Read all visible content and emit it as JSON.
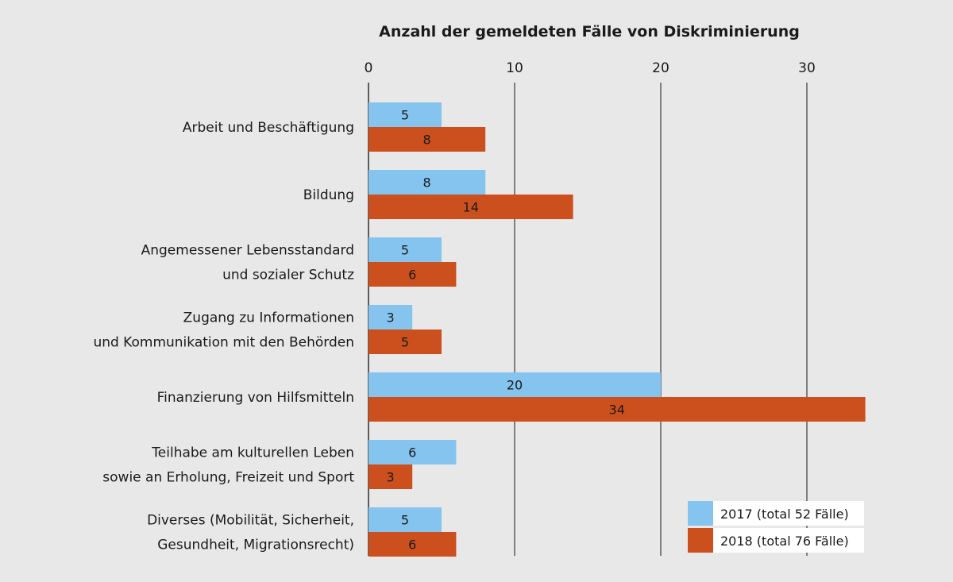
{
  "colors": {
    "background": "#e9e8e8",
    "series_2017": "#85c4ef",
    "series_2018": "#cc4f1e",
    "gridline": "#3a3a3a",
    "legend_box": "#ffffff"
  },
  "chart_data": {
    "type": "bar",
    "orientation": "horizontal",
    "title": "Anzahl der gemeldeten Fälle von Diskriminierung",
    "xlim": [
      0,
      34
    ],
    "xticks": [
      0,
      10,
      20,
      30
    ],
    "grid": true,
    "legend_position": "bottom-right",
    "categories": [
      [
        "Arbeit und Beschäftigung"
      ],
      [
        "Bildung"
      ],
      [
        "Angemessener Lebensstandard",
        "und sozialer Schutz"
      ],
      [
        "Zugang zu Informationen",
        "und Kommunikation mit den Behörden"
      ],
      [
        "Finanzierung von Hilfsmitteln"
      ],
      [
        "Teilhabe am kulturellen Leben",
        "sowie an Erholung, Freizeit und Sport"
      ],
      [
        "Diverses (Mobilität, Sicherheit,",
        "Gesundheit, Migrationsrecht)"
      ]
    ],
    "series": [
      {
        "name": "2017 (total 52 Fälle)",
        "values": [
          5,
          8,
          5,
          3,
          20,
          6,
          5
        ]
      },
      {
        "name": "2018 (total 76 Fälle)",
        "values": [
          8,
          14,
          6,
          5,
          34,
          3,
          6
        ]
      }
    ]
  }
}
